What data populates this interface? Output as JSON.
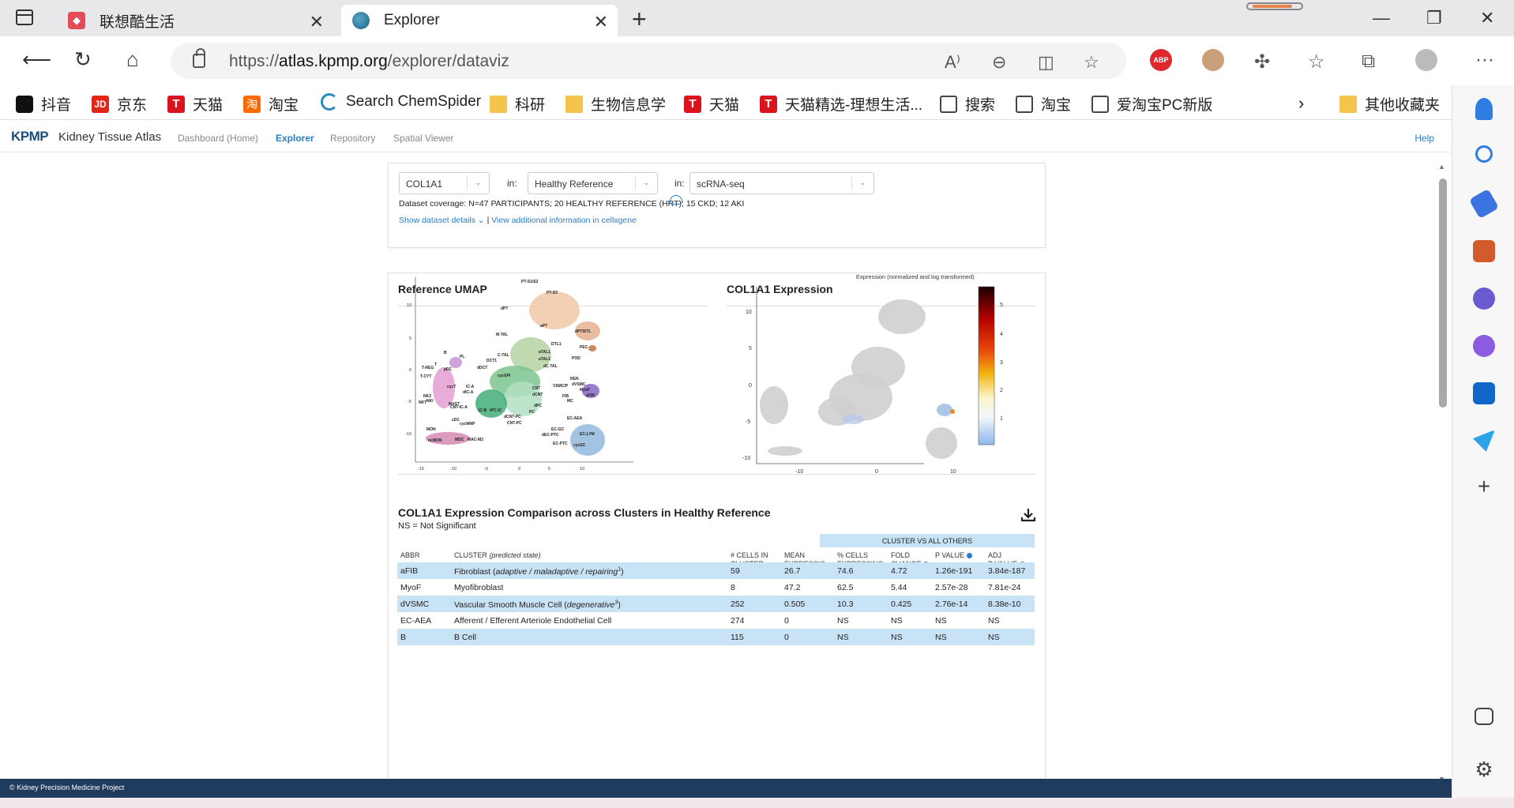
{
  "browser": {
    "tabs": [
      {
        "title": "联想酷生活",
        "active": false
      },
      {
        "title": "Explorer",
        "active": true
      }
    ],
    "url_prefix": "https://",
    "url_host": "atlas.kpmp.org",
    "url_path": "/explorer/dataviz",
    "bookmarks": [
      {
        "label": "抖音",
        "icon": "tiktok"
      },
      {
        "label": "京东",
        "icon": "jd"
      },
      {
        "label": "天猫",
        "icon": "tmall"
      },
      {
        "label": "淘宝",
        "icon": "taobao"
      },
      {
        "label": "Search ChemSpider",
        "icon": "chemspider"
      },
      {
        "label": "科研",
        "icon": "folder"
      },
      {
        "label": "生物信息学",
        "icon": "folder"
      },
      {
        "label": "天猫",
        "icon": "tmall"
      },
      {
        "label": "天猫精选-理想生活...",
        "icon": "tmall"
      },
      {
        "label": "搜索",
        "icon": "doc"
      },
      {
        "label": "淘宝",
        "icon": "doc"
      },
      {
        "label": "爱淘宝PC新版",
        "icon": "doc"
      }
    ],
    "other_bookmarks": "其他收藏夹"
  },
  "app": {
    "logo": "KPMP",
    "site_title": "Kidney Tissue Atlas",
    "nav": [
      {
        "label": "Dashboard (Home)",
        "active": false
      },
      {
        "label": "Explorer",
        "active": true
      },
      {
        "label": "Repository",
        "active": false
      },
      {
        "label": "Spatial Viewer",
        "active": false
      }
    ],
    "help": "Help"
  },
  "filters": {
    "gene": "COL1A1",
    "in_label": "in:",
    "dataset": "Healthy Reference",
    "technology": "scRNA-seq",
    "coverage": "Dataset coverage: N=47 PARTICIPANTS; 20 HEALTHY REFERENCE (HRT); 15 CKD; 12 AKI",
    "show_details": "Show dataset details",
    "separator": "|",
    "cellxgene_link": "View additional information in cellxgene"
  },
  "umap": {
    "title": "Reference UMAP",
    "y_ticks": [
      "10",
      "5",
      "0",
      "-5",
      "-10"
    ],
    "x_ticks": [
      "-15",
      "-10",
      "-5",
      "0",
      "5",
      "10"
    ],
    "cluster_labels": [
      "PT-S1/S2",
      "PT-S3",
      "dPT",
      "aPT",
      "dPT/DTL",
      "DTL1",
      "PEC",
      "POD",
      "M-TAL",
      "C-TAL",
      "aTAL1",
      "aTAL2",
      "dC-TAL",
      "DCT1",
      "dDCT",
      "cycEPI",
      "IC-A",
      "dIC-A",
      "CNT-IC-A",
      "IC-B",
      "tPC-IC",
      "dCNT-PC",
      "CNT-PC",
      "CNT",
      "dCNT",
      "dPC",
      "PC",
      "REN",
      "dVSMC",
      "VSMC/P",
      "MyoF",
      "FIB",
      "aFIB",
      "MC",
      "EC-AEA",
      "EC-GC",
      "dEC-PTC",
      "EC-PTC",
      "EC-LYM",
      "cycEC",
      "B",
      "PL",
      "T",
      "pDC",
      "T-REG",
      "T-CYT",
      "cycT",
      "NKT",
      "NKI",
      "NK2",
      "MAST",
      "cDC",
      "MON",
      "ncMON",
      "cycMNP",
      "MDC",
      "MAC-M2"
    ]
  },
  "expression": {
    "title": "COL1A1 Expression",
    "colorbar_title": "Expression (normalized and log transformed)",
    "colorbar_ticks": [
      "5",
      "4",
      "3",
      "2",
      "1"
    ],
    "y_ticks": [
      "10",
      "5",
      "0",
      "-5",
      "-10"
    ],
    "x_ticks": [
      "-10",
      "0",
      "10"
    ]
  },
  "table": {
    "title": "COL1A1 Expression Comparison across Clusters in Healthy Reference",
    "ns_note": "NS = Not Significant",
    "group_header": "CLUSTER VS ALL OTHERS",
    "headers": {
      "abbr": "ABBR",
      "cluster": "CLUSTER",
      "cluster_sub": "(predicted state)",
      "cells_1": "# CELLS IN",
      "cells_2": "CLUSTER",
      "mean_1": "MEAN",
      "mean_2": "EXPRESSIO...",
      "pct_1": "% CELLS",
      "pct_2": "EXPRESSING",
      "fold_1": "FOLD",
      "fold_2": "CHANGE",
      "p": "P VALUE",
      "adj_1": "ADJ",
      "adj_2": "P VALUE"
    },
    "rows": [
      {
        "abbr": "aFIB",
        "cluster": "Fibroblast",
        "state": "adaptive / maladaptive / repairing",
        "sup": "1",
        "cells": "59",
        "mean": "26.7",
        "pct": "74.6",
        "fold": "4.72",
        "p": "1.26e-191",
        "adj": "3.84e-187",
        "highlight": true
      },
      {
        "abbr": "MyoF",
        "cluster": "Myofibroblast",
        "state": "",
        "sup": "",
        "cells": "8",
        "mean": "47.2",
        "pct": "62.5",
        "fold": "5.44",
        "p": "2.57e-28",
        "adj": "7.81e-24",
        "highlight": false
      },
      {
        "abbr": "dVSMC",
        "cluster": "Vascular Smooth Muscle Cell",
        "state": "degenerative",
        "sup": "3",
        "cells": "252",
        "mean": "0.505",
        "pct": "10.3",
        "fold": "0.425",
        "p": "2.76e-14",
        "adj": "8.38e-10",
        "highlight": true
      },
      {
        "abbr": "EC-AEA",
        "cluster": "Afferent / Efferent Arteriole Endothelial Cell",
        "state": "",
        "sup": "",
        "cells": "274",
        "mean": "0",
        "pct": "NS",
        "fold": "NS",
        "p": "NS",
        "adj": "NS",
        "highlight": false
      },
      {
        "abbr": "B",
        "cluster": "B Cell",
        "state": "",
        "sup": "",
        "cells": "115",
        "mean": "0",
        "pct": "NS",
        "fold": "NS",
        "p": "NS",
        "adj": "NS",
        "highlight": true
      }
    ]
  },
  "footer": "© Kidney Precision Medicine Project",
  "colors": {
    "accent": "#2b7cc7",
    "highlight_row": "#c9e3f6",
    "footer_bg": "#1f3c5e"
  }
}
